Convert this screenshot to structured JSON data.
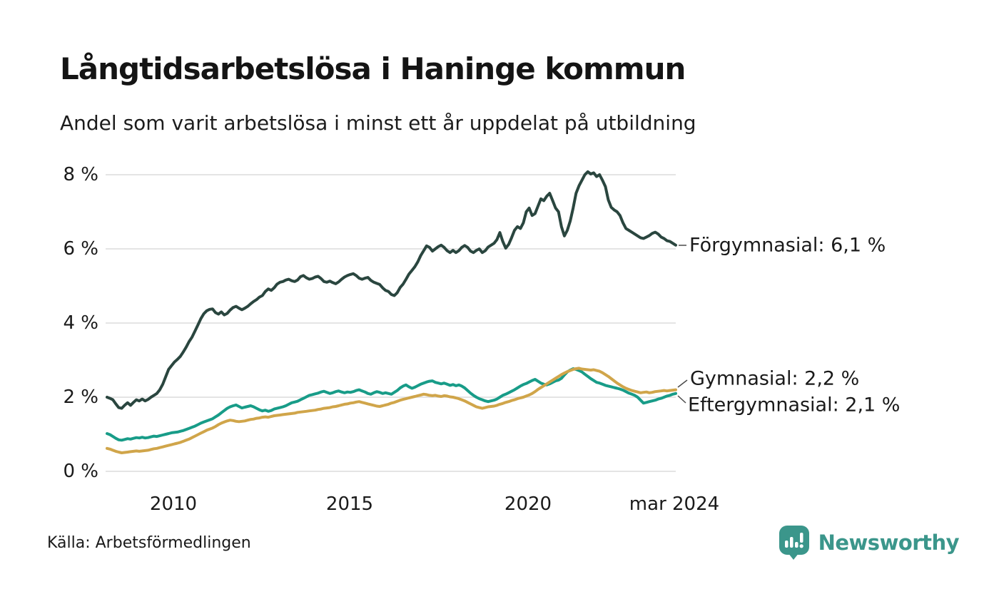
{
  "header": {
    "title": "Långtidsarbetslösa i Haninge kommun",
    "subtitle": "Andel som varit arbetslösa i minst ett år uppdelat på utbildning"
  },
  "footer": {
    "source": "Källa: Arbetsförmedlingen",
    "brand_name": "Newsworthy",
    "brand_color": "#3b968b",
    "brand_icon": "newsworthy-speech-bubble-bar-chart-icon"
  },
  "chart_data": {
    "type": "line",
    "title": "Långtidsarbetslösa i Haninge kommun",
    "subtitle": "Andel som varit arbetslösa i minst ett år uppdelat på utbildning",
    "x_unit": "month",
    "x_start": "2008-01",
    "x_end": "2024-03",
    "x_tick_labels": [
      "2010",
      "2015",
      "2020",
      "mar 2024"
    ],
    "x_tick_positions": [
      2010.0,
      2015.0,
      2020.0,
      2024.21
    ],
    "y_tick_labels": [
      "0 %",
      "2 %",
      "4 %",
      "6 %",
      "8 %"
    ],
    "y_tick_values": [
      0,
      2,
      4,
      6,
      8
    ],
    "ylim": [
      0,
      8.4
    ],
    "grid": "horizontal",
    "gridline_color": "#e4e4e4",
    "legend_position": "end-of-line-labels",
    "series": [
      {
        "name": "Förgymnasial",
        "end_label": "Förgymnasial: 6,1 %",
        "end_value": 6.1,
        "color": "#2a463f",
        "values": [
          2.0,
          1.97,
          1.93,
          1.82,
          1.72,
          1.7,
          1.78,
          1.85,
          1.78,
          1.86,
          1.93,
          1.9,
          1.95,
          1.9,
          1.94,
          2.0,
          2.05,
          2.1,
          2.2,
          2.35,
          2.55,
          2.75,
          2.85,
          2.95,
          3.02,
          3.1,
          3.22,
          3.35,
          3.5,
          3.62,
          3.78,
          3.95,
          4.12,
          4.25,
          4.33,
          4.37,
          4.38,
          4.28,
          4.24,
          4.3,
          4.22,
          4.26,
          4.35,
          4.42,
          4.45,
          4.4,
          4.36,
          4.4,
          4.45,
          4.52,
          4.58,
          4.63,
          4.7,
          4.74,
          4.85,
          4.92,
          4.88,
          4.95,
          5.05,
          5.1,
          5.12,
          5.16,
          5.18,
          5.14,
          5.12,
          5.16,
          5.25,
          5.28,
          5.22,
          5.18,
          5.2,
          5.24,
          5.26,
          5.2,
          5.12,
          5.1,
          5.13,
          5.09,
          5.06,
          5.11,
          5.18,
          5.24,
          5.28,
          5.31,
          5.33,
          5.28,
          5.21,
          5.18,
          5.21,
          5.23,
          5.15,
          5.1,
          5.07,
          5.04,
          4.95,
          4.88,
          4.85,
          4.77,
          4.74,
          4.82,
          4.96,
          5.05,
          5.18,
          5.32,
          5.42,
          5.52,
          5.65,
          5.82,
          5.95,
          6.08,
          6.04,
          5.94,
          6.0,
          6.06,
          6.1,
          6.04,
          5.95,
          5.9,
          5.96,
          5.9,
          5.95,
          6.04,
          6.09,
          6.04,
          5.94,
          5.9,
          5.96,
          6.0,
          5.9,
          5.95,
          6.05,
          6.1,
          6.15,
          6.25,
          6.44,
          6.2,
          6.02,
          6.12,
          6.3,
          6.5,
          6.6,
          6.55,
          6.7,
          7.0,
          7.1,
          6.9,
          6.95,
          7.15,
          7.35,
          7.3,
          7.42,
          7.5,
          7.3,
          7.1,
          7.0,
          6.6,
          6.35,
          6.5,
          6.75,
          7.1,
          7.5,
          7.7,
          7.85,
          8.0,
          8.08,
          8.02,
          8.05,
          7.95,
          8.0,
          7.85,
          7.68,
          7.32,
          7.12,
          7.05,
          7.0,
          6.9,
          6.7,
          6.55,
          6.5,
          6.45,
          6.4,
          6.35,
          6.3,
          6.28,
          6.32,
          6.36,
          6.42,
          6.45,
          6.4,
          6.32,
          6.28,
          6.22,
          6.2,
          6.15,
          6.1
        ]
      },
      {
        "name": "Gymnasial",
        "end_label": "Gymnasial: 2,2 %",
        "end_value": 2.2,
        "color": "#d0a54a",
        "values": [
          0.62,
          0.6,
          0.57,
          0.54,
          0.52,
          0.5,
          0.51,
          0.52,
          0.53,
          0.54,
          0.55,
          0.54,
          0.55,
          0.56,
          0.57,
          0.59,
          0.61,
          0.62,
          0.64,
          0.66,
          0.68,
          0.7,
          0.72,
          0.74,
          0.76,
          0.78,
          0.81,
          0.84,
          0.87,
          0.91,
          0.95,
          0.99,
          1.03,
          1.07,
          1.11,
          1.14,
          1.17,
          1.21,
          1.26,
          1.3,
          1.33,
          1.36,
          1.38,
          1.37,
          1.35,
          1.34,
          1.35,
          1.36,
          1.38,
          1.4,
          1.41,
          1.43,
          1.44,
          1.46,
          1.47,
          1.46,
          1.48,
          1.5,
          1.51,
          1.52,
          1.53,
          1.54,
          1.55,
          1.56,
          1.57,
          1.59,
          1.6,
          1.61,
          1.62,
          1.63,
          1.64,
          1.65,
          1.67,
          1.68,
          1.7,
          1.71,
          1.72,
          1.74,
          1.75,
          1.77,
          1.79,
          1.81,
          1.82,
          1.84,
          1.85,
          1.87,
          1.88,
          1.86,
          1.84,
          1.82,
          1.8,
          1.78,
          1.76,
          1.75,
          1.77,
          1.79,
          1.81,
          1.84,
          1.86,
          1.89,
          1.92,
          1.94,
          1.96,
          1.98,
          2.0,
          2.02,
          2.04,
          2.06,
          2.08,
          2.07,
          2.05,
          2.04,
          2.05,
          2.03,
          2.02,
          2.04,
          2.03,
          2.01,
          2.0,
          1.98,
          1.96,
          1.93,
          1.9,
          1.86,
          1.82,
          1.78,
          1.74,
          1.72,
          1.7,
          1.72,
          1.74,
          1.75,
          1.76,
          1.78,
          1.81,
          1.83,
          1.86,
          1.88,
          1.91,
          1.93,
          1.96,
          1.98,
          2.0,
          2.03,
          2.06,
          2.1,
          2.15,
          2.21,
          2.26,
          2.31,
          2.36,
          2.41,
          2.46,
          2.51,
          2.56,
          2.61,
          2.65,
          2.69,
          2.72,
          2.75,
          2.77,
          2.78,
          2.76,
          2.75,
          2.74,
          2.73,
          2.74,
          2.72,
          2.7,
          2.66,
          2.61,
          2.56,
          2.5,
          2.44,
          2.38,
          2.33,
          2.28,
          2.24,
          2.21,
          2.18,
          2.16,
          2.14,
          2.12,
          2.13,
          2.14,
          2.12,
          2.13,
          2.15,
          2.16,
          2.17,
          2.18,
          2.17,
          2.18,
          2.19,
          2.2
        ]
      },
      {
        "name": "Eftergymnasial",
        "end_label": "Eftergymnasial: 2,1 %",
        "end_value": 2.1,
        "color": "#189c88",
        "values": [
          1.02,
          0.99,
          0.94,
          0.89,
          0.85,
          0.84,
          0.86,
          0.88,
          0.87,
          0.89,
          0.91,
          0.9,
          0.92,
          0.9,
          0.91,
          0.93,
          0.95,
          0.94,
          0.96,
          0.98,
          1.0,
          1.02,
          1.04,
          1.05,
          1.06,
          1.08,
          1.1,
          1.13,
          1.16,
          1.19,
          1.22,
          1.26,
          1.3,
          1.33,
          1.36,
          1.39,
          1.42,
          1.47,
          1.52,
          1.58,
          1.64,
          1.7,
          1.74,
          1.77,
          1.79,
          1.75,
          1.71,
          1.73,
          1.75,
          1.77,
          1.74,
          1.7,
          1.66,
          1.63,
          1.65,
          1.62,
          1.64,
          1.68,
          1.7,
          1.72,
          1.74,
          1.77,
          1.81,
          1.85,
          1.87,
          1.89,
          1.93,
          1.97,
          2.01,
          2.05,
          2.07,
          2.09,
          2.11,
          2.14,
          2.16,
          2.13,
          2.1,
          2.12,
          2.15,
          2.17,
          2.14,
          2.12,
          2.14,
          2.13,
          2.15,
          2.18,
          2.2,
          2.17,
          2.14,
          2.1,
          2.08,
          2.12,
          2.15,
          2.13,
          2.1,
          2.12,
          2.1,
          2.08,
          2.13,
          2.18,
          2.25,
          2.3,
          2.33,
          2.28,
          2.24,
          2.27,
          2.31,
          2.35,
          2.38,
          2.41,
          2.43,
          2.44,
          2.4,
          2.38,
          2.36,
          2.38,
          2.35,
          2.32,
          2.34,
          2.31,
          2.33,
          2.3,
          2.25,
          2.18,
          2.11,
          2.05,
          2.0,
          1.96,
          1.93,
          1.9,
          1.88,
          1.9,
          1.92,
          1.95,
          2.0,
          2.05,
          2.08,
          2.12,
          2.16,
          2.2,
          2.25,
          2.3,
          2.34,
          2.37,
          2.41,
          2.45,
          2.48,
          2.43,
          2.38,
          2.35,
          2.33,
          2.36,
          2.4,
          2.44,
          2.46,
          2.51,
          2.6,
          2.68,
          2.73,
          2.77,
          2.75,
          2.72,
          2.68,
          2.62,
          2.56,
          2.5,
          2.45,
          2.4,
          2.38,
          2.35,
          2.32,
          2.3,
          2.28,
          2.26,
          2.24,
          2.22,
          2.19,
          2.15,
          2.11,
          2.08,
          2.05,
          2.0,
          1.92,
          1.84,
          1.86,
          1.88,
          1.9,
          1.92,
          1.95,
          1.97,
          2.0,
          2.03,
          2.05,
          2.08,
          2.1
        ]
      }
    ]
  }
}
